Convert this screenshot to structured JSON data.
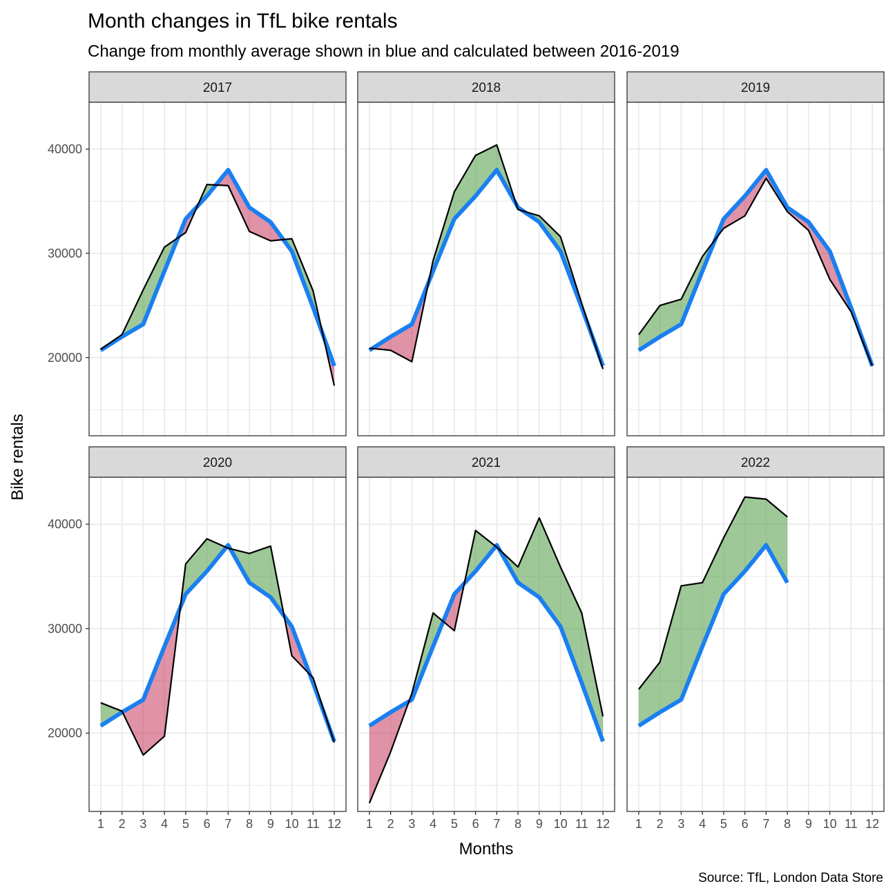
{
  "chart_data": {
    "type": "area",
    "title": "Month changes in TfL bike rentals",
    "subtitle": "Change from monthly average shown in blue and calculated between 2016-2019",
    "xlabel": "Months",
    "ylabel": "Bike rentals",
    "caption": "Source: TfL, London Data Store",
    "x_ticks": [
      "1",
      "2",
      "3",
      "4",
      "5",
      "6",
      "7",
      "8",
      "9",
      "10",
      "11",
      "12"
    ],
    "y_ticks": [
      20000,
      30000,
      40000
    ],
    "ylim": [
      12500,
      44500
    ],
    "xlim": [
      0.45,
      12.55
    ],
    "grid": true,
    "facets": [
      "2017",
      "2018",
      "2019",
      "2020",
      "2021",
      "2022"
    ],
    "baseline": [
      20700,
      22000,
      23200,
      28300,
      33300,
      35500,
      38000,
      34400,
      33000,
      30200,
      24800,
      19200
    ],
    "actual": {
      "2017": [
        20800,
        22200,
        26500,
        30600,
        32000,
        36600,
        36500,
        32100,
        31200,
        31400,
        26400,
        17300
      ],
      "2018": [
        20900,
        20700,
        19600,
        29300,
        35900,
        39400,
        40400,
        34200,
        33600,
        31600,
        25200,
        18900
      ],
      "2019": [
        22200,
        25000,
        25600,
        29700,
        32400,
        33600,
        37200,
        34000,
        32200,
        27500,
        24400,
        19200
      ],
      "2020": [
        22900,
        22100,
        17900,
        19700,
        36200,
        38600,
        37700,
        37200,
        37900,
        27400,
        25300,
        19100
      ],
      "2021": [
        13300,
        18200,
        23800,
        31500,
        29800,
        39400,
        37800,
        35900,
        40600,
        35900,
        31500,
        21600
      ],
      "2022": [
        24200,
        26800,
        34100,
        34400,
        38700,
        42600,
        42400,
        40700
      ]
    },
    "colors": {
      "baseline": "#1a7ff0",
      "above": "#4f9a43",
      "below": "#c2264f",
      "actual_line": "#000000",
      "strip_fill": "#d9d9d9",
      "grid": "#ebebeb"
    }
  }
}
